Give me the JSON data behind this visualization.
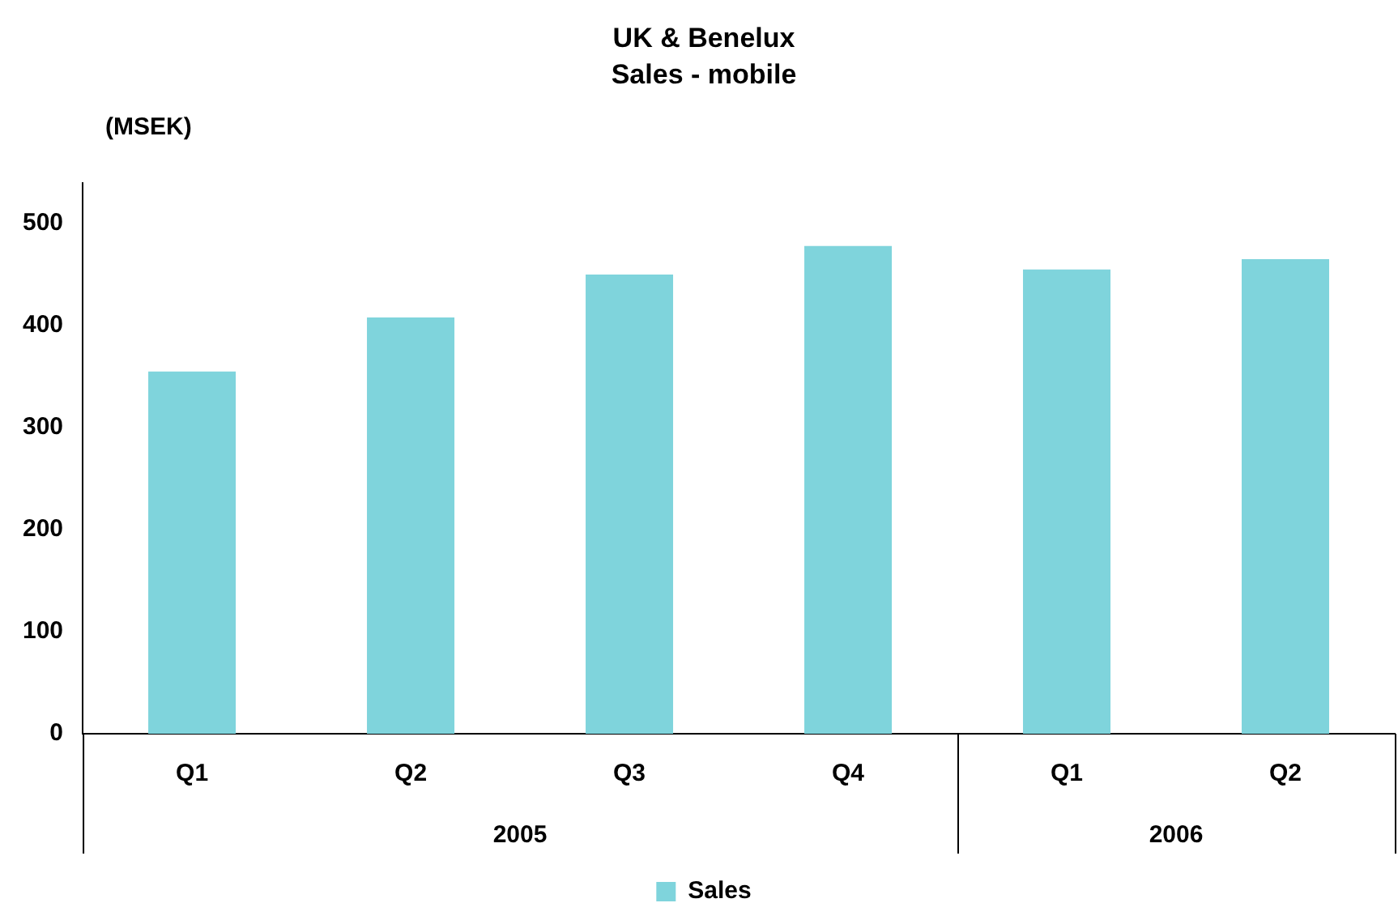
{
  "chart_data": {
    "type": "bar",
    "title": "UK & Benelux",
    "subtitle": "Sales - mobile",
    "ylabel": "(MSEK)",
    "categories": [
      "Q1",
      "Q2",
      "Q3",
      "Q4",
      "Q1",
      "Q2"
    ],
    "series": [
      {
        "name": "Sales",
        "color": "#7fd4dc",
        "values": [
          355,
          408,
          450,
          478,
          455,
          465
        ]
      }
    ],
    "annotations": [
      "2005",
      "2006"
    ],
    "ylim": [
      0,
      540
    ],
    "yticks": [
      0,
      100,
      200,
      300,
      400,
      500
    ],
    "grid": false,
    "legend": "bottom"
  }
}
